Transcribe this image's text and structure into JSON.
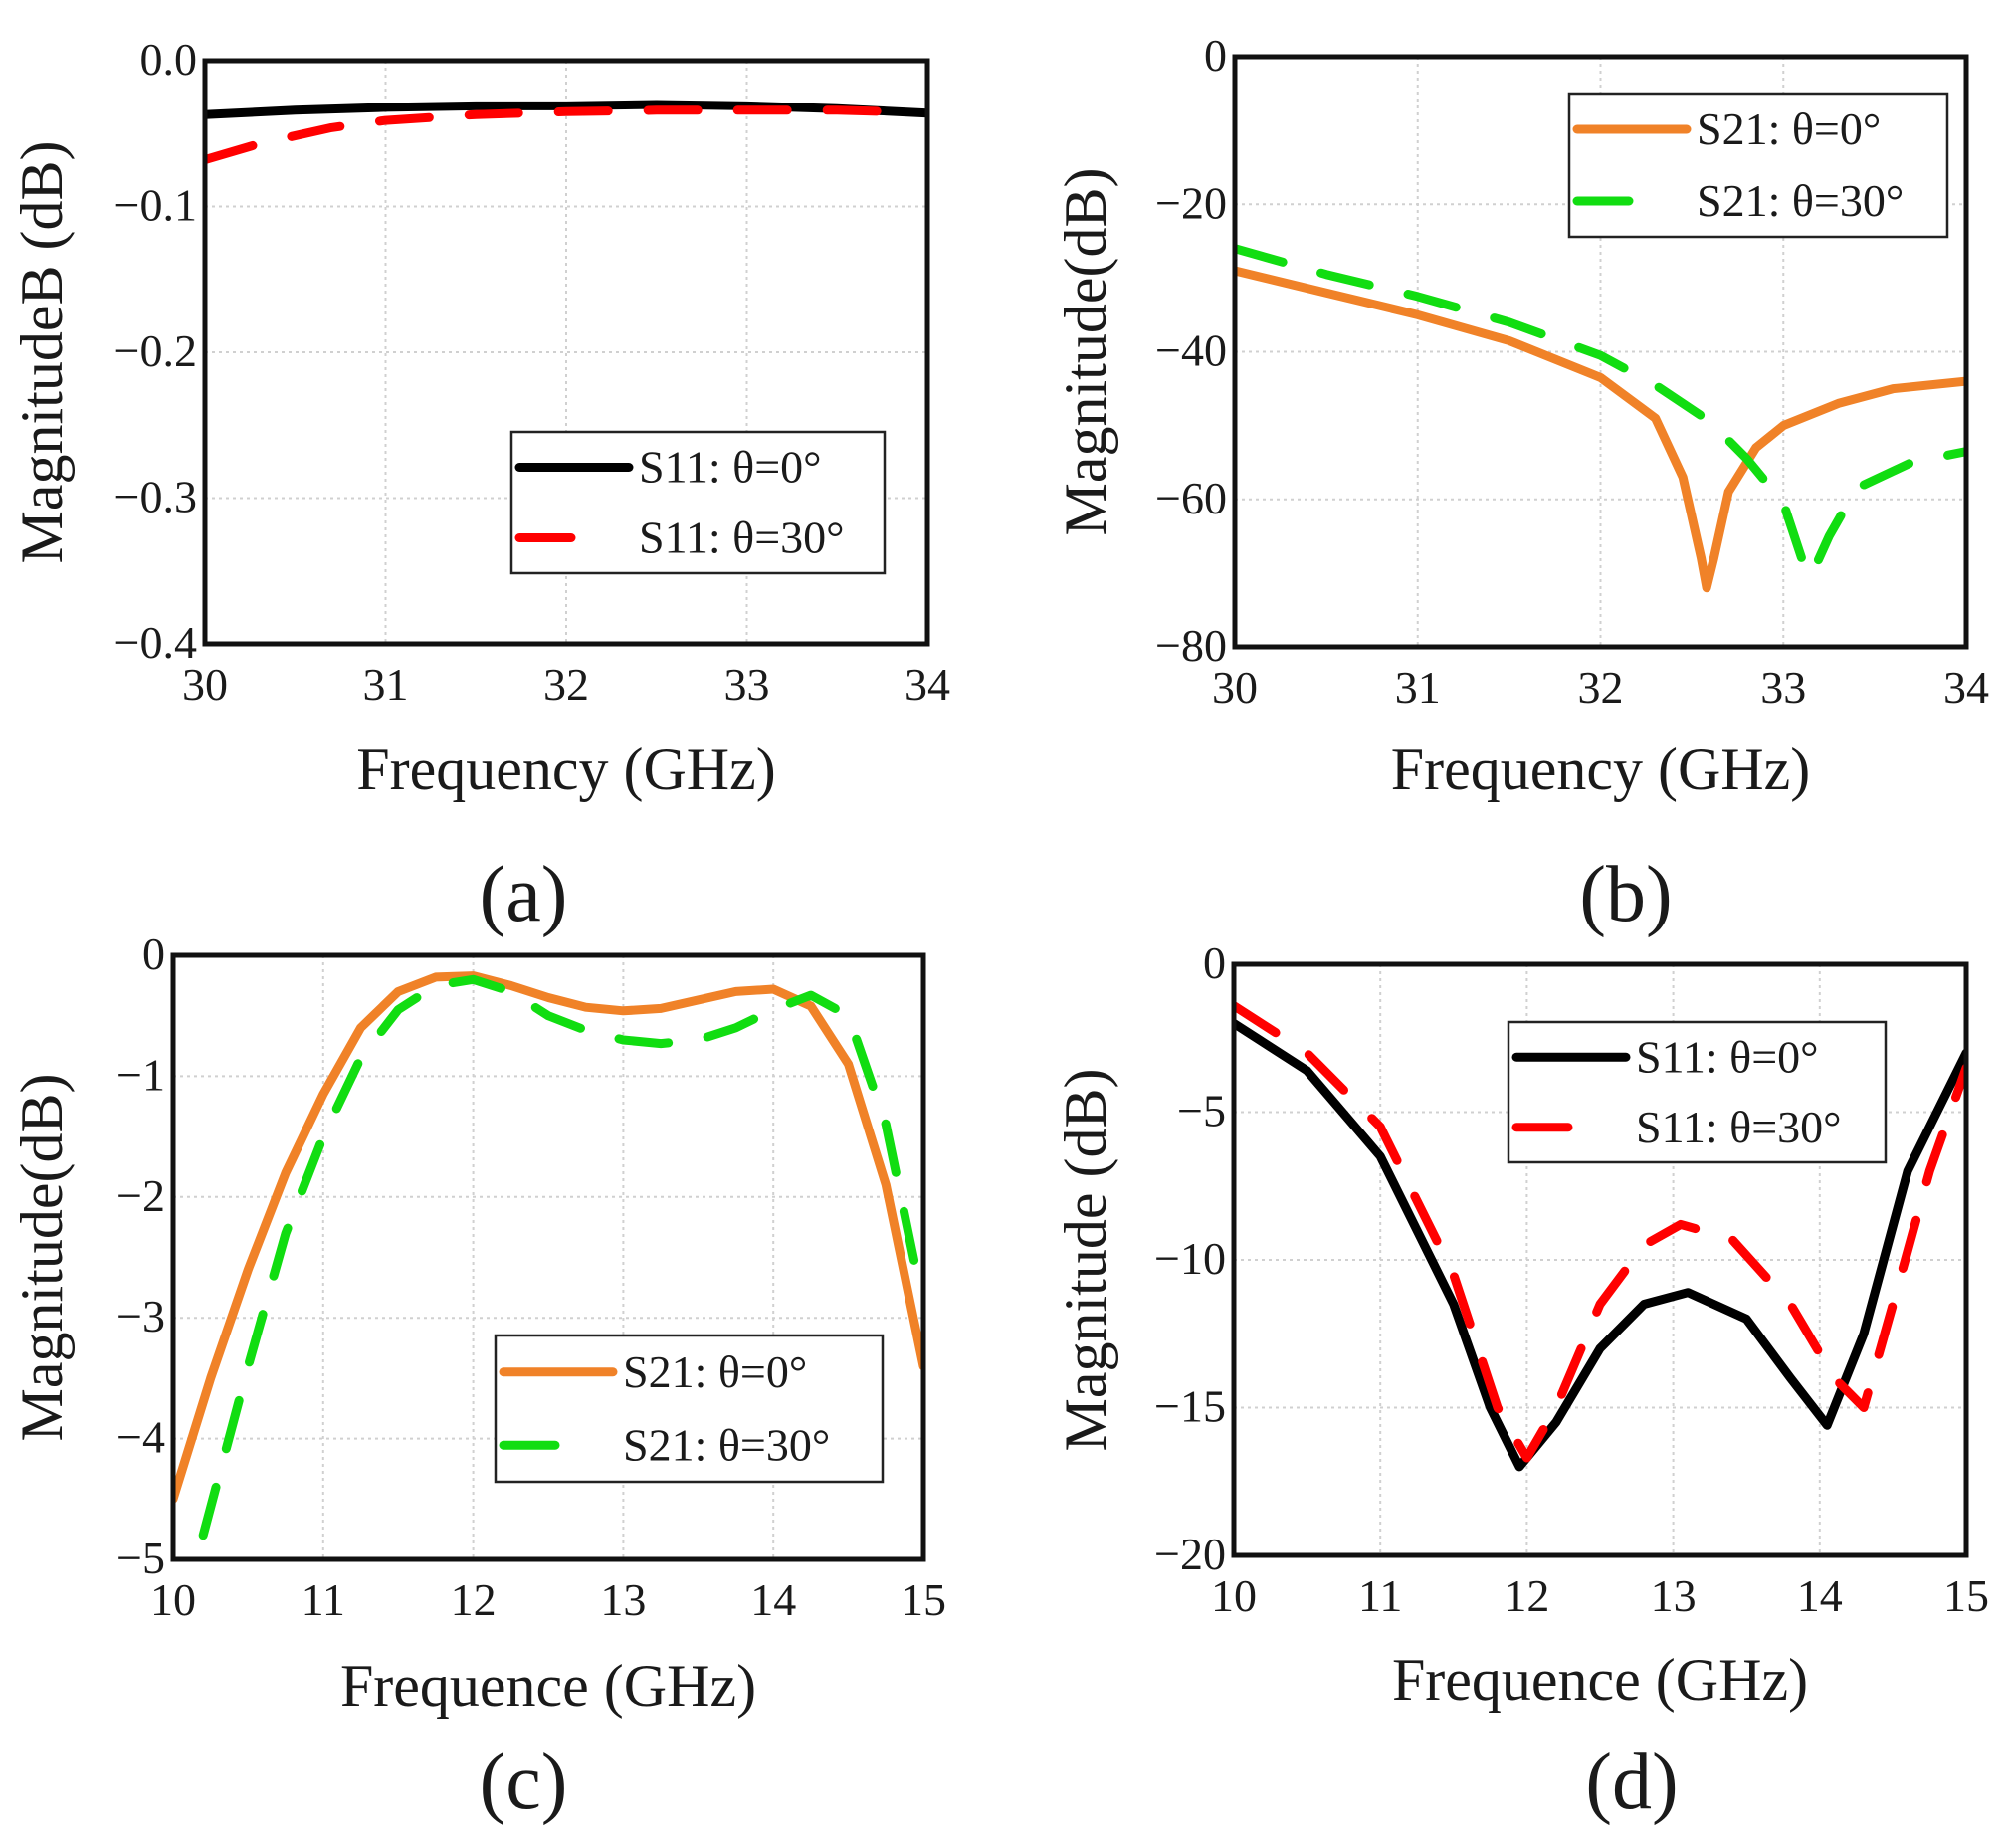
{
  "chart_data": [
    {
      "type": "line",
      "panel_label": "(a)",
      "xlabel": "Frequency (GHz)",
      "ylabel": "MagnitudeB (dB)",
      "xlim": [
        30,
        34
      ],
      "ylim": [
        -0.4,
        0.0
      ],
      "xticks": [
        30,
        31,
        32,
        33,
        34
      ],
      "xtick_labels": [
        "30",
        "31",
        "32",
        "33",
        "34"
      ],
      "yticks": [
        0.0,
        -0.1,
        -0.2,
        -0.3,
        -0.4
      ],
      "ytick_labels": [
        "0.0",
        "−0.1",
        "−0.2",
        "−0.3",
        "−0.4"
      ],
      "grid": true,
      "legend_position": "lower-right",
      "series": [
        {
          "name": "S11: θ=0°",
          "color": "#000000",
          "style": "solid",
          "x": [
            30,
            30.5,
            31,
            31.5,
            32,
            32.5,
            33,
            33.5,
            34
          ],
          "y": [
            -0.037,
            -0.034,
            -0.032,
            -0.031,
            -0.031,
            -0.03,
            -0.031,
            -0.033,
            -0.036
          ]
        },
        {
          "name": "S11: θ=30°",
          "color": "#ff0000",
          "style": "dashed",
          "x": [
            30,
            30.3,
            30.7,
            31,
            31.5,
            32,
            32.5,
            33,
            33.5,
            33.8
          ],
          "y": [
            -0.068,
            -0.057,
            -0.046,
            -0.041,
            -0.037,
            -0.035,
            -0.034,
            -0.034,
            -0.034,
            -0.035
          ]
        }
      ]
    },
    {
      "type": "line",
      "panel_label": "(b)",
      "xlabel": "Frequency (GHz)",
      "ylabel": "Magnitude(dB)",
      "xlim": [
        30,
        34
      ],
      "ylim": [
        -80,
        0
      ],
      "xticks": [
        30,
        31,
        32,
        33,
        34
      ],
      "xtick_labels": [
        "30",
        "31",
        "32",
        "33",
        "34"
      ],
      "yticks": [
        0,
        -20,
        -40,
        -60,
        -80
      ],
      "ytick_labels": [
        "0",
        "−20",
        "−40",
        "−60",
        "−80"
      ],
      "grid": true,
      "legend_position": "top-right",
      "series": [
        {
          "name": "S21: θ=0°",
          "color": "#f08228",
          "style": "solid",
          "x": [
            30,
            30.5,
            31,
            31.5,
            32,
            32.3,
            32.45,
            32.55,
            32.58,
            32.62,
            32.7,
            32.85,
            33,
            33.3,
            33.6,
            34
          ],
          "y": [
            -29,
            -32,
            -35,
            -38.5,
            -43.5,
            -49,
            -57,
            -68,
            -72,
            -68,
            -59,
            -53,
            -50,
            -47,
            -45,
            -44
          ]
        },
        {
          "name": "S21: θ=30°",
          "color": "#11dd11",
          "style": "dashed",
          "x": [
            30,
            30.5,
            31,
            31.5,
            32,
            32.3,
            32.6,
            32.8,
            33,
            33.1,
            33.15,
            33.25,
            33.4,
            33.7,
            34
          ],
          "y": [
            -26,
            -29.5,
            -32.5,
            -36,
            -40.5,
            -44.5,
            -49.5,
            -54.5,
            -60.5,
            -68,
            -70.5,
            -65,
            -58.5,
            -55,
            -53.5
          ]
        }
      ]
    },
    {
      "type": "line",
      "panel_label": "(c)",
      "xlabel": "Frequence (GHz)",
      "ylabel": "Magnitude(dB)",
      "xlim": [
        10,
        15
      ],
      "ylim": [
        -5,
        0
      ],
      "xticks": [
        10,
        11,
        12,
        13,
        14,
        15
      ],
      "xtick_labels": [
        "10",
        "11",
        "12",
        "13",
        "14",
        "15"
      ],
      "yticks": [
        0,
        -1,
        -2,
        -3,
        -4,
        -5
      ],
      "ytick_labels": [
        "0",
        "−1",
        "−2",
        "−3",
        "−4",
        "−5"
      ],
      "grid": true,
      "legend_position": "lower-right",
      "series": [
        {
          "name": "S21: θ=0°",
          "color": "#f08228",
          "style": "solid",
          "x": [
            10,
            10.25,
            10.5,
            10.75,
            11,
            11.25,
            11.5,
            11.75,
            12,
            12.25,
            12.5,
            12.75,
            13,
            13.25,
            13.5,
            13.75,
            14,
            14.25,
            14.5,
            14.75,
            15
          ],
          "y": [
            -4.5,
            -3.5,
            -2.6,
            -1.8,
            -1.15,
            -0.6,
            -0.3,
            -0.18,
            -0.17,
            -0.25,
            -0.35,
            -0.43,
            -0.46,
            -0.44,
            -0.37,
            -0.3,
            -0.28,
            -0.42,
            -0.9,
            -1.9,
            -3.4
          ]
        },
        {
          "name": "S21: θ=30°",
          "color": "#11dd11",
          "style": "dashed",
          "x": [
            10.2,
            10.5,
            10.75,
            11,
            11.25,
            11.5,
            11.75,
            12,
            12.25,
            12.5,
            12.75,
            13,
            13.25,
            13.5,
            13.75,
            14,
            14.25,
            14.5,
            14.75,
            14.95
          ],
          "y": [
            -4.8,
            -3.4,
            -2.3,
            -1.5,
            -0.85,
            -0.45,
            -0.25,
            -0.2,
            -0.3,
            -0.5,
            -0.62,
            -0.7,
            -0.73,
            -0.7,
            -0.6,
            -0.45,
            -0.33,
            -0.5,
            -1.4,
            -2.6
          ]
        }
      ]
    },
    {
      "type": "line",
      "panel_label": "(d)",
      "xlabel": "Frequence (GHz)",
      "ylabel": "Magnitude (dB)",
      "xlim": [
        10,
        15
      ],
      "ylim": [
        -20,
        0
      ],
      "xticks": [
        10,
        11,
        12,
        13,
        14,
        15
      ],
      "xtick_labels": [
        "10",
        "11",
        "12",
        "13",
        "14",
        "15"
      ],
      "yticks": [
        0,
        -5,
        -10,
        -15,
        -20
      ],
      "ytick_labels": [
        "0",
        "−5",
        "−10",
        "−15",
        "−20"
      ],
      "grid": true,
      "legend_position": "top-right",
      "series": [
        {
          "name": "S11: θ=0°",
          "color": "#000000",
          "style": "solid",
          "x": [
            10,
            10.5,
            11,
            11.5,
            11.75,
            11.95,
            12.2,
            12.5,
            12.8,
            13.1,
            13.5,
            13.8,
            14.05,
            14.3,
            14.6,
            15
          ],
          "y": [
            -2,
            -3.6,
            -6.5,
            -11.5,
            -15,
            -17,
            -15.5,
            -13,
            -11.5,
            -11.1,
            -12,
            -14,
            -15.6,
            -12.5,
            -7,
            -3
          ]
        },
        {
          "name": "S11: θ=30°",
          "color": "#ff0000",
          "style": "dashed",
          "x": [
            10,
            10.5,
            11,
            11.5,
            11.8,
            12,
            12.2,
            12.5,
            12.8,
            13.05,
            13.4,
            13.8,
            14.1,
            14.3,
            14.5,
            14.75,
            15
          ],
          "y": [
            -1.4,
            -3,
            -5.5,
            -10.5,
            -15,
            -16.7,
            -15,
            -11.5,
            -9.5,
            -8.8,
            -9.3,
            -11.5,
            -14,
            -15,
            -11.5,
            -7,
            -3.5
          ]
        }
      ]
    }
  ]
}
